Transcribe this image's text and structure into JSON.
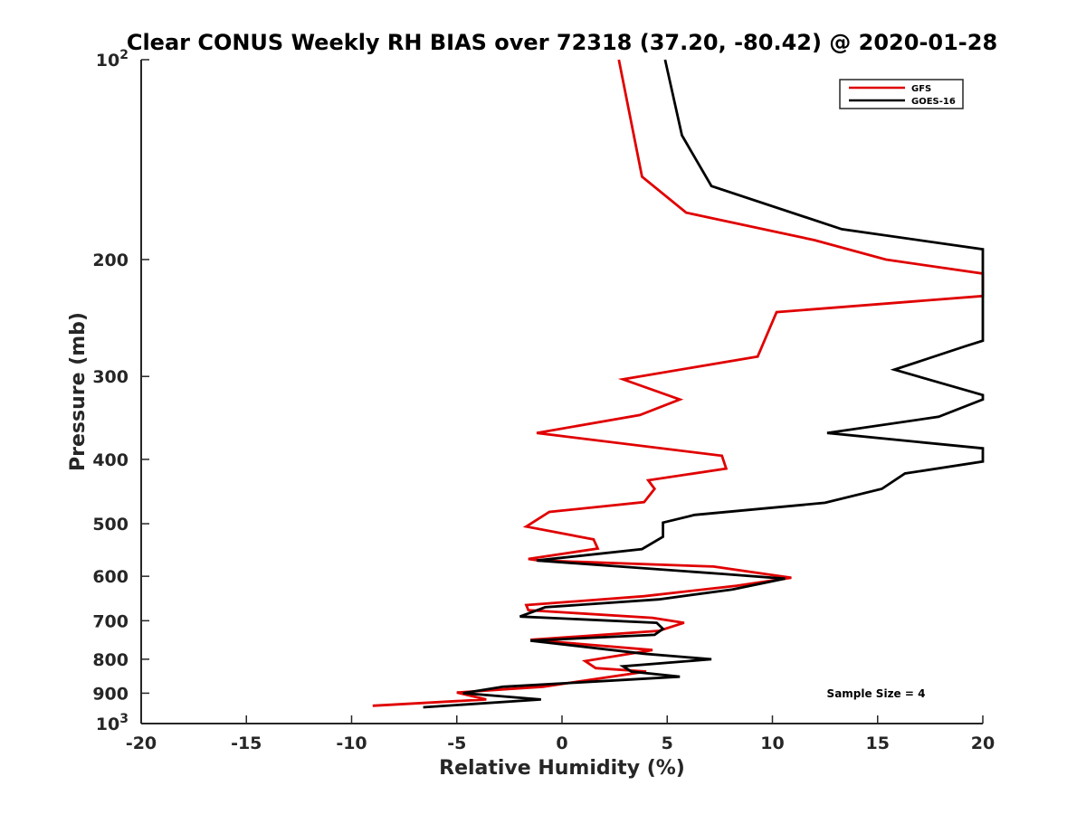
{
  "chart_data": {
    "type": "line",
    "title": "Clear CONUS Weekly RH BIAS over 72318 (37.20, -80.42) @ 2020-01-28",
    "xlabel": "Relative Humidity (%)",
    "ylabel": "Pressure (mb)",
    "xlim": [
      -20,
      20
    ],
    "ylim": [
      100,
      1000
    ],
    "y_scale": "log",
    "y_reversed": true,
    "x_ticks": [
      -20,
      -15,
      -10,
      -5,
      0,
      5,
      10,
      15,
      20
    ],
    "y_ticks": [
      {
        "value": 100,
        "label": "10",
        "sup": "2"
      },
      {
        "value": 200,
        "label": "200"
      },
      {
        "value": 300,
        "label": "300"
      },
      {
        "value": 400,
        "label": "400"
      },
      {
        "value": 500,
        "label": "500"
      },
      {
        "value": 600,
        "label": "600"
      },
      {
        "value": 700,
        "label": "700"
      },
      {
        "value": 800,
        "label": "800"
      },
      {
        "value": 900,
        "label": "900"
      },
      {
        "value": 1000,
        "label": "10",
        "sup": "3"
      }
    ],
    "grid": false,
    "legend_position": "top-right",
    "annotation": "Sample Size = 4",
    "series": [
      {
        "name": "GFS",
        "color": "#e00000",
        "points": [
          [
            2.7,
            100
          ],
          [
            3.8,
            150
          ],
          [
            5.9,
            170
          ],
          [
            12.0,
            187
          ],
          [
            15.4,
            200
          ],
          [
            20.0,
            210
          ],
          [
            20.0,
            227
          ],
          [
            10.2,
            240
          ],
          [
            9.3,
            280
          ],
          [
            2.9,
            303
          ],
          [
            5.6,
            325
          ],
          [
            3.7,
            343
          ],
          [
            -1.2,
            365
          ],
          [
            7.6,
            395
          ],
          [
            7.8,
            413
          ],
          [
            4.1,
            430
          ],
          [
            4.4,
            443
          ],
          [
            3.9,
            464
          ],
          [
            -0.6,
            480
          ],
          [
            -1.7,
            505
          ],
          [
            1.5,
            528
          ],
          [
            1.7,
            545
          ],
          [
            -1.6,
            565
          ],
          [
            -1.1,
            568
          ],
          [
            7.2,
            580
          ],
          [
            10.9,
            603
          ],
          [
            8.3,
            620
          ],
          [
            3.9,
            643
          ],
          [
            -1.7,
            663
          ],
          [
            -1.6,
            675
          ],
          [
            4.3,
            693
          ],
          [
            5.8,
            705
          ],
          [
            4.6,
            725
          ],
          [
            -1.5,
            748
          ],
          [
            4.3,
            775
          ],
          [
            1.1,
            805
          ],
          [
            1.6,
            825
          ],
          [
            4.0,
            835
          ],
          [
            -0.9,
            880
          ],
          [
            -5.0,
            898
          ],
          [
            -3.6,
            920
          ],
          [
            -9.0,
            940
          ]
        ]
      },
      {
        "name": "GOES-16",
        "color": "#000000",
        "points": [
          [
            4.9,
            100
          ],
          [
            5.7,
            130
          ],
          [
            7.1,
            155
          ],
          [
            13.3,
            180
          ],
          [
            20.0,
            193
          ],
          [
            20.0,
            265
          ],
          [
            19.2,
            270
          ],
          [
            15.8,
            293
          ],
          [
            20.0,
            320
          ],
          [
            20.0,
            325
          ],
          [
            17.9,
            345
          ],
          [
            12.6,
            365
          ],
          [
            20.0,
            385
          ],
          [
            20.0,
            403
          ],
          [
            16.3,
            420
          ],
          [
            15.2,
            443
          ],
          [
            12.5,
            465
          ],
          [
            6.3,
            485
          ],
          [
            4.8,
            498
          ],
          [
            4.8,
            523
          ],
          [
            3.8,
            546
          ],
          [
            -1.2,
            568
          ],
          [
            7.6,
            595
          ],
          [
            10.6,
            605
          ],
          [
            8.1,
            628
          ],
          [
            4.6,
            650
          ],
          [
            -0.8,
            668
          ],
          [
            -2.0,
            690
          ],
          [
            4.5,
            705
          ],
          [
            4.8,
            720
          ],
          [
            4.4,
            735
          ],
          [
            -1.5,
            750
          ],
          [
            3.9,
            785
          ],
          [
            7.1,
            800
          ],
          [
            2.9,
            820
          ],
          [
            3.3,
            835
          ],
          [
            5.6,
            850
          ],
          [
            -2.8,
            880
          ],
          [
            -4.7,
            900
          ],
          [
            -1.0,
            920
          ],
          [
            -6.6,
            945
          ]
        ]
      }
    ]
  }
}
